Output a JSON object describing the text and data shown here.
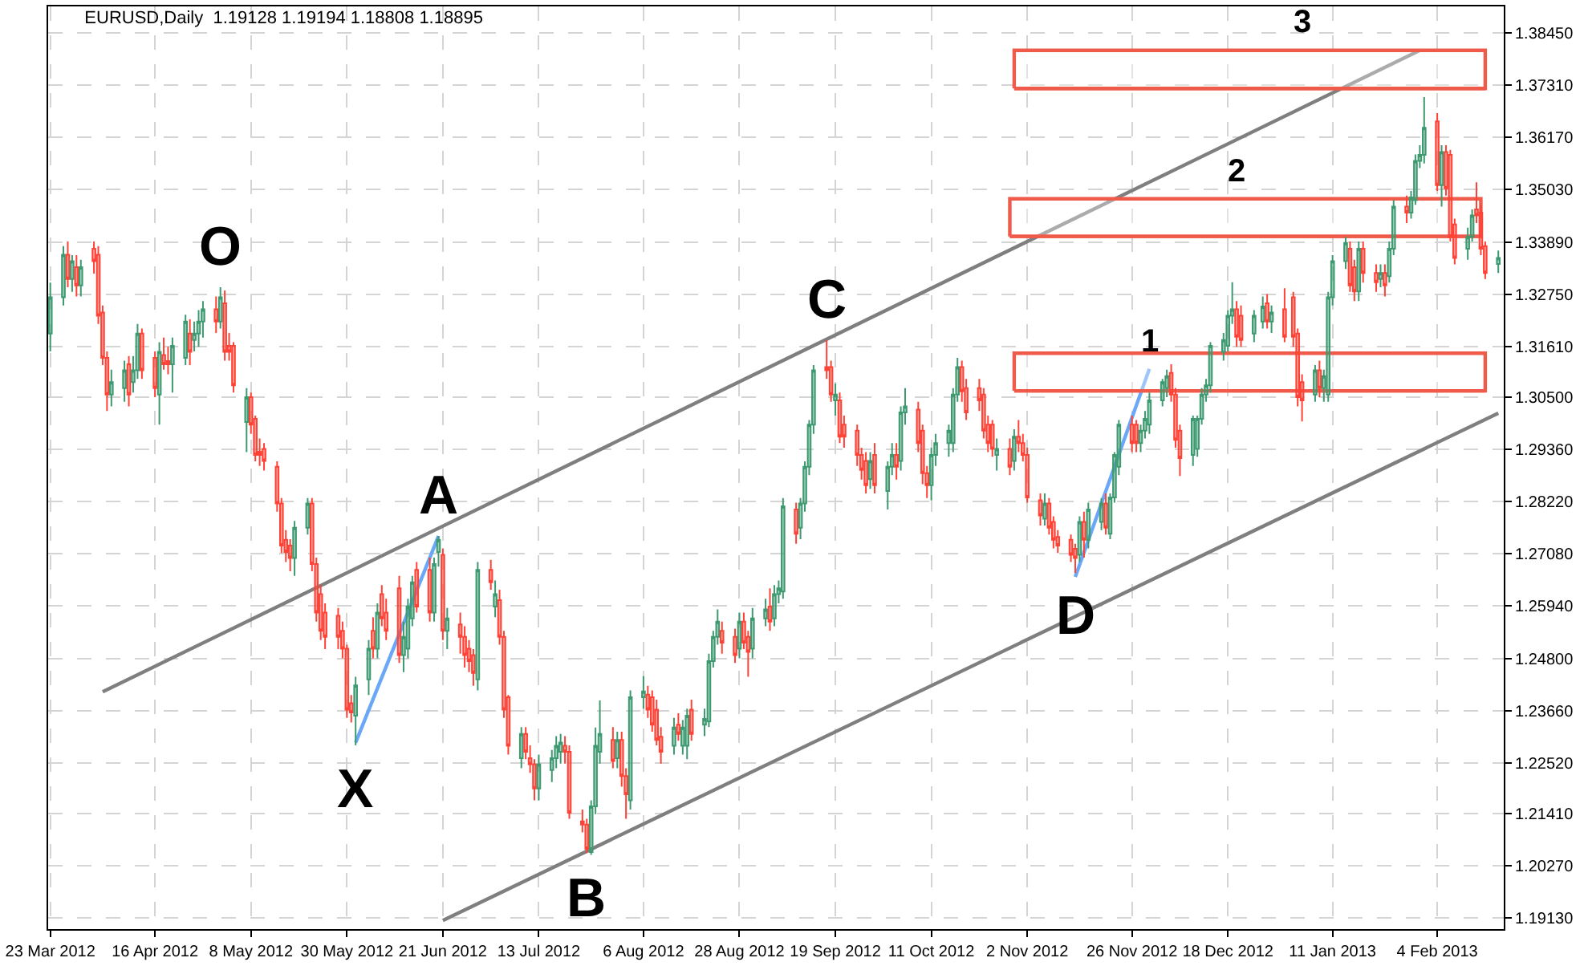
{
  "chart_data": {
    "type": "candlestick",
    "title": "EURUSD,Daily  1.19128 1.19194 1.18808 1.18895",
    "x": [
      "2012-03-23",
      "2012-03-26",
      "2012-03-27",
      "2012-03-28",
      "2012-03-29",
      "2012-03-30",
      "2012-04-02",
      "2012-04-03",
      "2012-04-04",
      "2012-04-05",
      "2012-04-06",
      "2012-04-09",
      "2012-04-10",
      "2012-04-11",
      "2012-04-12",
      "2012-04-13",
      "2012-04-16",
      "2012-04-17",
      "2012-04-18",
      "2012-04-19",
      "2012-04-20",
      "2012-04-23",
      "2012-04-24",
      "2012-04-25",
      "2012-04-26",
      "2012-04-27",
      "2012-04-30",
      "2012-05-01",
      "2012-05-02",
      "2012-05-03",
      "2012-05-04",
      "2012-05-07",
      "2012-05-08",
      "2012-05-09",
      "2012-05-10",
      "2012-05-11",
      "2012-05-14",
      "2012-05-15",
      "2012-05-16",
      "2012-05-17",
      "2012-05-18",
      "2012-05-21",
      "2012-05-22",
      "2012-05-23",
      "2012-05-24",
      "2012-05-25",
      "2012-05-28",
      "2012-05-29",
      "2012-05-30",
      "2012-05-31",
      "2012-06-01",
      "2012-06-04",
      "2012-06-05",
      "2012-06-06",
      "2012-06-07",
      "2012-06-08",
      "2012-06-11",
      "2012-06-12",
      "2012-06-13",
      "2012-06-14",
      "2012-06-15",
      "2012-06-18",
      "2012-06-19",
      "2012-06-20",
      "2012-06-21",
      "2012-06-22",
      "2012-06-25",
      "2012-06-26",
      "2012-06-27",
      "2012-06-28",
      "2012-06-29",
      "2012-07-02",
      "2012-07-03",
      "2012-07-04",
      "2012-07-05",
      "2012-07-06",
      "2012-07-09",
      "2012-07-10",
      "2012-07-11",
      "2012-07-12",
      "2012-07-13",
      "2012-07-16",
      "2012-07-17",
      "2012-07-18",
      "2012-07-19",
      "2012-07-20",
      "2012-07-23",
      "2012-07-24",
      "2012-07-25",
      "2012-07-26",
      "2012-07-27",
      "2012-07-30",
      "2012-07-31",
      "2012-08-01",
      "2012-08-02",
      "2012-08-03",
      "2012-08-06",
      "2012-08-07",
      "2012-08-08",
      "2012-08-09",
      "2012-08-10",
      "2012-08-13",
      "2012-08-14",
      "2012-08-15",
      "2012-08-16",
      "2012-08-17",
      "2012-08-20",
      "2012-08-21",
      "2012-08-22",
      "2012-08-23",
      "2012-08-24",
      "2012-08-27",
      "2012-08-28",
      "2012-08-29",
      "2012-08-30",
      "2012-08-31",
      "2012-09-03",
      "2012-09-04",
      "2012-09-05",
      "2012-09-06",
      "2012-09-07",
      "2012-09-10",
      "2012-09-11",
      "2012-09-12",
      "2012-09-13",
      "2012-09-14",
      "2012-09-17",
      "2012-09-18",
      "2012-09-19",
      "2012-09-20",
      "2012-09-21",
      "2012-09-24",
      "2012-09-25",
      "2012-09-26",
      "2012-09-27",
      "2012-09-28",
      "2012-10-01",
      "2012-10-02",
      "2012-10-03",
      "2012-10-04",
      "2012-10-05",
      "2012-10-08",
      "2012-10-09",
      "2012-10-10",
      "2012-10-11",
      "2012-10-12",
      "2012-10-15",
      "2012-10-16",
      "2012-10-17",
      "2012-10-18",
      "2012-10-19",
      "2012-10-22",
      "2012-10-23",
      "2012-10-24",
      "2012-10-25",
      "2012-10-26",
      "2012-10-29",
      "2012-10-30",
      "2012-10-31",
      "2012-11-01",
      "2012-11-02",
      "2012-11-05",
      "2012-11-06",
      "2012-11-07",
      "2012-11-08",
      "2012-11-09",
      "2012-11-12",
      "2012-11-13",
      "2012-11-14",
      "2012-11-15",
      "2012-11-16",
      "2012-11-19",
      "2012-11-20",
      "2012-11-21",
      "2012-11-22",
      "2012-11-23",
      "2012-11-26",
      "2012-11-27",
      "2012-11-28",
      "2012-11-29",
      "2012-11-30",
      "2012-12-03",
      "2012-12-04",
      "2012-12-05",
      "2012-12-06",
      "2012-12-07",
      "2012-12-10",
      "2012-12-11",
      "2012-12-12",
      "2012-12-13",
      "2012-12-14",
      "2012-12-17",
      "2012-12-18",
      "2012-12-19",
      "2012-12-20",
      "2012-12-21",
      "2012-12-24",
      "2012-12-26",
      "2012-12-27",
      "2012-12-28",
      "2012-12-31",
      "2013-01-02",
      "2013-01-03",
      "2013-01-04",
      "2013-01-07",
      "2013-01-08",
      "2013-01-09",
      "2013-01-10",
      "2013-01-11",
      "2013-01-14",
      "2013-01-15",
      "2013-01-16",
      "2013-01-17",
      "2013-01-18",
      "2013-01-21",
      "2013-01-22",
      "2013-01-23",
      "2013-01-24",
      "2013-01-25",
      "2013-01-28",
      "2013-01-29",
      "2013-01-30",
      "2013-01-31",
      "2013-02-01",
      "2013-02-04",
      "2013-02-05",
      "2013-02-06",
      "2013-02-07",
      "2013-02-08",
      "2013-02-11",
      "2013-02-12",
      "2013-02-13",
      "2013-02-14",
      "2013-02-15",
      "2013-02-18"
    ],
    "ohlc": [
      [
        1.3189,
        1.33,
        1.315,
        1.3268
      ],
      [
        1.3268,
        1.338,
        1.325,
        1.3361
      ],
      [
        1.3361,
        1.339,
        1.329,
        1.3308
      ],
      [
        1.3308,
        1.336,
        1.328,
        1.3347
      ],
      [
        1.3334,
        1.336,
        1.327,
        1.3294
      ],
      [
        1.3294,
        1.335,
        1.327,
        1.3334
      ],
      [
        1.3374,
        1.339,
        1.332,
        1.3347
      ],
      [
        1.3361,
        1.338,
        1.321,
        1.3228
      ],
      [
        1.3235,
        1.325,
        1.312,
        1.3136
      ],
      [
        1.3136,
        1.315,
        1.302,
        1.3056
      ],
      [
        1.3056,
        1.311,
        1.303,
        1.3083
      ],
      [
        1.307,
        1.313,
        1.304,
        1.3109
      ],
      [
        1.3122,
        1.314,
        1.303,
        1.3056
      ],
      [
        1.3083,
        1.314,
        1.306,
        1.3109
      ],
      [
        1.3109,
        1.321,
        1.309,
        1.3189
      ],
      [
        1.3189,
        1.32,
        1.309,
        1.3109
      ],
      [
        1.3136,
        1.315,
        1.305,
        1.307
      ],
      [
        1.3056,
        1.317,
        1.299,
        1.3149
      ],
      [
        1.3142,
        1.318,
        1.311,
        1.3122
      ],
      [
        1.3129,
        1.316,
        1.31,
        1.3122
      ],
      [
        1.3122,
        1.318,
        1.306,
        1.3162
      ],
      [
        1.3136,
        1.323,
        1.312,
        1.3215
      ],
      [
        1.3189,
        1.322,
        1.312,
        1.3149
      ],
      [
        1.3175,
        1.3215,
        1.315,
        1.3189
      ],
      [
        1.3189,
        1.324,
        1.316,
        1.3215
      ],
      [
        1.3215,
        1.326,
        1.318,
        1.3242
      ],
      [
        1.3242,
        1.327,
        1.319,
        1.3215
      ],
      [
        1.3215,
        1.329,
        1.32,
        1.3268
      ],
      [
        1.3255,
        1.3283,
        1.313,
        1.3149
      ],
      [
        1.3162,
        1.319,
        1.313,
        1.3149
      ],
      [
        1.3162,
        1.317,
        1.306,
        1.3076
      ],
      [
        1.2996,
        1.307,
        1.293,
        1.305
      ],
      [
        1.305,
        1.306,
        1.297,
        1.299
      ],
      [
        1.3003,
        1.301,
        1.291,
        1.2924
      ],
      [
        1.2931,
        1.296,
        1.29,
        1.2924
      ],
      [
        1.2937,
        1.295,
        1.289,
        1.2911
      ],
      [
        1.2898,
        1.291,
        1.28,
        1.2818
      ],
      [
        1.2818,
        1.283,
        1.271,
        1.2726
      ],
      [
        1.2739,
        1.276,
        1.269,
        1.2712
      ],
      [
        1.2726,
        1.274,
        1.267,
        1.2699
      ],
      [
        1.2699,
        1.278,
        1.266,
        1.2765
      ],
      [
        1.2765,
        1.283,
        1.275,
        1.2818
      ],
      [
        1.2818,
        1.283,
        1.267,
        1.2686
      ],
      [
        1.2686,
        1.27,
        1.256,
        1.258
      ],
      [
        1.262,
        1.264,
        1.252,
        1.254
      ],
      [
        1.258,
        1.26,
        1.25,
        1.2527
      ],
      [
        1.2573,
        1.259,
        1.25,
        1.2527
      ],
      [
        1.254,
        1.256,
        1.248,
        1.2501
      ],
      [
        1.2501,
        1.251,
        1.235,
        1.2368
      ],
      [
        1.2382,
        1.24,
        1.234,
        1.2362
      ],
      [
        1.2355,
        1.244,
        1.229,
        1.2421
      ],
      [
        1.2434,
        1.252,
        1.24,
        1.2501
      ],
      [
        1.254,
        1.257,
        1.248,
        1.2501
      ],
      [
        1.2501,
        1.26,
        1.248,
        1.258
      ],
      [
        1.262,
        1.264,
        1.255,
        1.2567
      ],
      [
        1.258,
        1.261,
        1.252,
        1.254
      ],
      [
        1.2633,
        1.266,
        1.247,
        1.2487
      ],
      [
        1.2487,
        1.256,
        1.245,
        1.2527
      ],
      [
        1.2501,
        1.261,
        1.248,
        1.2593
      ],
      [
        1.2567,
        1.266,
        1.255,
        1.2646
      ],
      [
        1.2673,
        1.269,
        1.258,
        1.2593
      ],
      [
        1.2673,
        1.27,
        1.256,
        1.258
      ],
      [
        1.258,
        1.27,
        1.256,
        1.2686
      ],
      [
        1.2712,
        1.2747,
        1.268,
        1.2739
      ],
      [
        1.2706,
        1.272,
        1.252,
        1.254
      ],
      [
        1.254,
        1.259,
        1.25,
        1.2567
      ],
      [
        1.2554,
        1.258,
        1.249,
        1.2527
      ],
      [
        1.2527,
        1.255,
        1.246,
        1.2487
      ],
      [
        1.2501,
        1.252,
        1.245,
        1.2474
      ],
      [
        1.2487,
        1.25,
        1.242,
        1.2448
      ],
      [
        1.2434,
        1.269,
        1.241,
        1.2673
      ],
      [
        1.2673,
        1.2695,
        1.263,
        1.2646
      ],
      [
        1.2593,
        1.265,
        1.257,
        1.262
      ],
      [
        1.2607,
        1.263,
        1.251,
        1.2527
      ],
      [
        1.2527,
        1.254,
        1.235,
        1.2368
      ],
      [
        1.2395,
        1.24,
        1.227,
        1.2289
      ],
      [
        1.2262,
        1.233,
        1.224,
        1.2315
      ],
      [
        1.2315,
        1.233,
        1.226,
        1.2276
      ],
      [
        1.2262,
        1.229,
        1.223,
        1.2249
      ],
      [
        1.2249,
        1.226,
        1.217,
        1.2196
      ],
      [
        1.2196,
        1.227,
        1.217,
        1.2249
      ],
      [
        1.2236,
        1.228,
        1.221,
        1.2262
      ],
      [
        1.2262,
        1.231,
        1.224,
        1.2289
      ],
      [
        1.2276,
        1.2315,
        1.225,
        1.2296
      ],
      [
        1.2289,
        1.231,
        1.225,
        1.2276
      ],
      [
        1.2276,
        1.229,
        1.213,
        1.2143
      ],
      [
        1.2124,
        1.215,
        1.21,
        1.2117
      ],
      [
        1.2117,
        1.213,
        1.2055,
        1.2064
      ],
      [
        1.2057,
        1.217,
        1.2051,
        1.2157
      ],
      [
        1.2157,
        1.2329,
        1.214,
        1.2289
      ],
      [
        1.2276,
        1.2388,
        1.225,
        1.2315
      ],
      [
        1.2302,
        1.233,
        1.224,
        1.2256
      ],
      [
        1.2262,
        1.232,
        1.224,
        1.2302
      ],
      [
        1.2302,
        1.232,
        1.22,
        1.2223
      ],
      [
        1.2223,
        1.224,
        1.213,
        1.2183
      ],
      [
        1.217,
        1.241,
        1.215,
        1.2395
      ],
      [
        1.2395,
        1.2441,
        1.237,
        1.2408
      ],
      [
        1.2401,
        1.242,
        1.235,
        1.2368
      ],
      [
        1.2395,
        1.241,
        1.232,
        1.2335
      ],
      [
        1.2368,
        1.239,
        1.229,
        1.2302
      ],
      [
        1.2309,
        1.233,
        1.225,
        1.2276
      ],
      [
        1.2289,
        1.235,
        1.227,
        1.2329
      ],
      [
        1.2335,
        1.236,
        1.23,
        1.2315
      ],
      [
        1.2289,
        1.2345,
        1.227,
        1.2329
      ],
      [
        1.2289,
        1.237,
        1.226,
        1.2355
      ],
      [
        1.2368,
        1.239,
        1.23,
        1.2315
      ],
      [
        1.2335,
        1.237,
        1.231,
        1.2348
      ],
      [
        1.2342,
        1.249,
        1.233,
        1.2474
      ],
      [
        1.2474,
        1.254,
        1.246,
        1.2527
      ],
      [
        1.2527,
        1.2587,
        1.251,
        1.256
      ],
      [
        1.254,
        1.256,
        1.249,
        1.2514
      ],
      [
        1.2527,
        1.2545,
        1.247,
        1.2487
      ],
      [
        1.2501,
        1.258,
        1.248,
        1.256
      ],
      [
        1.256,
        1.258,
        1.25,
        1.2514
      ],
      [
        1.2527,
        1.254,
        1.244,
        1.2494
      ],
      [
        1.2501,
        1.259,
        1.248,
        1.2567
      ],
      [
        1.2567,
        1.261,
        1.255,
        1.2587
      ],
      [
        1.2593,
        1.2633,
        1.254,
        1.256
      ],
      [
        1.2567,
        1.264,
        1.255,
        1.262
      ],
      [
        1.262,
        1.265,
        1.26,
        1.2633
      ],
      [
        1.2626,
        1.283,
        1.261,
        1.2812
      ],
      [
        1.2805,
        1.282,
        1.273,
        1.2752
      ],
      [
        1.2765,
        1.283,
        1.274,
        1.2818
      ],
      [
        1.2818,
        1.291,
        1.28,
        1.2898
      ],
      [
        1.2898,
        1.3,
        1.288,
        1.299
      ],
      [
        1.299,
        1.312,
        1.297,
        1.3109
      ],
      [
        1.3116,
        1.3175,
        1.309,
        1.3109
      ],
      [
        1.3116,
        1.313,
        1.304,
        1.3056
      ],
      [
        1.3043,
        1.308,
        1.301,
        1.3056
      ],
      [
        1.3043,
        1.306,
        1.295,
        1.2964
      ],
      [
        1.299,
        1.301,
        1.294,
        1.2964
      ],
      [
        1.2977,
        1.299,
        1.29,
        1.2924
      ],
      [
        1.2924,
        1.294,
        1.287,
        1.2891
      ],
      [
        1.2911,
        1.293,
        1.284,
        1.2858
      ],
      [
        1.2871,
        1.293,
        1.285,
        1.2911
      ],
      [
        1.2924,
        1.295,
        1.284,
        1.2858
      ],
      [
        1.2845,
        1.291,
        1.2805,
        1.2898
      ],
      [
        1.2898,
        1.295,
        1.288,
        1.2924
      ],
      [
        1.2924,
        1.295,
        1.287,
        1.2898
      ],
      [
        1.2911,
        1.303,
        1.289,
        1.3017
      ],
      [
        1.3017,
        1.307,
        1.299,
        1.303
      ],
      [
        1.3023,
        1.304,
        1.293,
        1.295
      ],
      [
        1.2977,
        1.299,
        1.286,
        1.2884
      ],
      [
        1.2884,
        1.29,
        1.283,
        1.2858
      ],
      [
        1.2858,
        1.294,
        1.2825,
        1.2924
      ],
      [
        1.2924,
        1.297,
        1.29,
        1.295
      ],
      [
        1.295,
        1.299,
        1.292,
        1.2977
      ],
      [
        1.295,
        1.307,
        1.293,
        1.3056
      ],
      [
        1.3056,
        1.3136,
        1.304,
        1.3116
      ],
      [
        1.3116,
        1.313,
        1.304,
        1.3063
      ],
      [
        1.307,
        1.309,
        1.3,
        1.3017
      ],
      [
        1.307,
        1.309,
        1.302,
        1.3043
      ],
      [
        1.3056,
        1.307,
        1.296,
        1.2977
      ],
      [
        1.299,
        1.301,
        1.293,
        1.295
      ],
      [
        1.299,
        1.3,
        1.292,
        1.2937
      ],
      [
        1.2924,
        1.296,
        1.289,
        1.2937
      ],
      [
        1.2937,
        1.296,
        1.288,
        1.2898
      ],
      [
        1.2911,
        1.298,
        1.289,
        1.2964
      ],
      [
        1.2964,
        1.3,
        1.293,
        1.295
      ],
      [
        1.295,
        1.297,
        1.291,
        1.2924
      ],
      [
        1.2924,
        1.294,
        1.282,
        1.2831
      ],
      [
        1.2825,
        1.284,
        1.277,
        1.2792
      ],
      [
        1.2785,
        1.284,
        1.277,
        1.2818
      ],
      [
        1.2818,
        1.283,
        1.275,
        1.2765
      ],
      [
        1.2778,
        1.279,
        1.272,
        1.2739
      ],
      [
        1.2745,
        1.276,
        1.271,
        1.2726
      ],
      [
        1.2739,
        1.275,
        1.269,
        1.2706
      ],
      [
        1.2719,
        1.273,
        1.2666,
        1.2699
      ],
      [
        1.2706,
        1.279,
        1.269,
        1.2778
      ],
      [
        1.2778,
        1.28,
        1.27,
        1.2739
      ],
      [
        1.2739,
        1.282,
        1.272,
        1.2805
      ],
      [
        1.2778,
        1.283,
        1.276,
        1.2818
      ],
      [
        1.2818,
        1.284,
        1.275,
        1.2765
      ],
      [
        1.2752,
        1.284,
        1.274,
        1.2831
      ],
      [
        1.2831,
        1.293,
        1.282,
        1.2924
      ],
      [
        1.2898,
        1.3,
        1.288,
        1.299
      ],
      [
        1.299,
        1.301,
        1.293,
        1.295
      ],
      [
        1.299,
        1.3,
        1.293,
        1.295
      ],
      [
        1.295,
        1.299,
        1.293,
        1.2977
      ],
      [
        1.2977,
        1.302,
        1.296,
        1.3003
      ],
      [
        1.299,
        1.306,
        1.297,
        1.3043
      ],
      [
        1.3043,
        1.309,
        1.303,
        1.3083
      ],
      [
        1.307,
        1.311,
        1.305,
        1.3096
      ],
      [
        1.3103,
        1.3122,
        1.304,
        1.3056
      ],
      [
        1.3056,
        1.307,
        1.294,
        1.2957
      ],
      [
        1.2977,
        1.299,
        1.2878,
        1.2917
      ],
      [
        1.2924,
        1.301,
        1.29,
        1.3003
      ],
      [
        1.2937,
        1.301,
        1.292,
        1.3003
      ],
      [
        1.3003,
        1.307,
        1.299,
        1.3056
      ],
      [
        1.3056,
        1.309,
        1.304,
        1.3076
      ],
      [
        1.3076,
        1.317,
        1.306,
        1.3162
      ],
      [
        1.3149,
        1.319,
        1.313,
        1.3175
      ],
      [
        1.3162,
        1.324,
        1.315,
        1.3228
      ],
      [
        1.3228,
        1.3301,
        1.321,
        1.3242
      ],
      [
        1.3242,
        1.326,
        1.316,
        1.3182
      ],
      [
        1.3228,
        1.325,
        1.316,
        1.3175
      ],
      [
        1.3189,
        1.324,
        1.317,
        1.3228
      ],
      [
        1.3215,
        1.327,
        1.32,
        1.3248
      ],
      [
        1.3255,
        1.3275,
        1.32,
        1.3215
      ],
      [
        1.3215,
        1.325,
        1.319,
        1.3235
      ],
      [
        1.3242,
        1.3288,
        1.317,
        1.3182
      ],
      [
        1.3268,
        1.328,
        1.316,
        1.3182
      ],
      [
        1.3189,
        1.32,
        1.303,
        1.305
      ],
      [
        1.3083,
        1.31,
        1.2997,
        1.3043
      ],
      [
        1.3056,
        1.312,
        1.304,
        1.3109
      ],
      [
        1.3109,
        1.313,
        1.305,
        1.307
      ],
      [
        1.307,
        1.311,
        1.304,
        1.3096
      ],
      [
        1.3056,
        1.328,
        1.304,
        1.3268
      ],
      [
        1.3268,
        1.336,
        1.325,
        1.3347
      ],
      [
        1.3347,
        1.34,
        1.333,
        1.3387
      ],
      [
        1.3374,
        1.339,
        1.328,
        1.3294
      ],
      [
        1.3334,
        1.335,
        1.326,
        1.3281
      ],
      [
        1.3281,
        1.339,
        1.326,
        1.3374
      ],
      [
        1.3374,
        1.339,
        1.33,
        1.3321
      ],
      [
        1.3321,
        1.334,
        1.328,
        1.3301
      ],
      [
        1.3308,
        1.334,
        1.329,
        1.3321
      ],
      [
        1.3321,
        1.334,
        1.327,
        1.3294
      ],
      [
        1.3314,
        1.339,
        1.33,
        1.3374
      ],
      [
        1.3374,
        1.348,
        1.336,
        1.3466
      ],
      [
        1.3466,
        1.349,
        1.343,
        1.3453
      ],
      [
        1.3453,
        1.35,
        1.344,
        1.3486
      ],
      [
        1.348,
        1.358,
        1.347,
        1.3566
      ],
      [
        1.3566,
        1.36,
        1.355,
        1.3579
      ],
      [
        1.3579,
        1.3705,
        1.356,
        1.3638
      ],
      [
        1.3652,
        1.367,
        1.35,
        1.3513
      ],
      [
        1.3513,
        1.36,
        1.3466,
        1.3585
      ],
      [
        1.3585,
        1.36,
        1.349,
        1.3506
      ],
      [
        1.3579,
        1.359,
        1.339,
        1.34
      ],
      [
        1.3427,
        1.344,
        1.334,
        1.3354
      ],
      [
        1.3374,
        1.342,
        1.335,
        1.34
      ],
      [
        1.34,
        1.346,
        1.339,
        1.3447
      ],
      [
        1.346,
        1.3519,
        1.343,
        1.3447
      ],
      [
        1.3453,
        1.347,
        1.336,
        1.3374
      ],
      [
        1.338,
        1.339,
        1.3308,
        1.3321
      ],
      [
        1.3341,
        1.337,
        1.3321,
        1.3354
      ]
    ],
    "series": [
      {
        "type": "line",
        "color": "#7f7f7f",
        "x": [
          "2012-04-04",
          "2013-01-31"
        ],
        "values": [
          1.2407,
          1.3807
        ]
      },
      {
        "type": "line",
        "color": "#7f7f7f",
        "x": [
          "2012-06-21",
          "2013-02-18"
        ],
        "values": [
          1.1908,
          1.3015
        ]
      },
      {
        "type": "line",
        "color": "#6aa8f7",
        "x": [
          "2012-06-01",
          "2012-06-20"
        ],
        "values": [
          1.2296,
          1.2747
        ]
      },
      {
        "type": "line",
        "color": "#6aa8f7",
        "x": [
          "2012-11-13",
          "2012-11-30"
        ],
        "values": [
          1.2658,
          1.3112
        ]
      },
      {
        "type": "line",
        "color": "#f05a4a",
        "x": [
          "2012-10-30",
          "2013-02-15"
        ],
        "values": [
          1.3064,
          1.3064
        ],
        "lower": [
          1.3064,
          1.3064
        ],
        "upper": [
          1.3146,
          1.3146
        ]
      },
      {
        "type": "line",
        "color": "#f05a4a",
        "x": [
          "2012-10-29",
          "2013-02-14"
        ],
        "values": [
          1.3401,
          1.3401
        ],
        "lower": [
          1.3401,
          1.3401
        ],
        "upper": [
          1.3483,
          1.3483
        ]
      },
      {
        "type": "line",
        "color": "#f05a4a",
        "x": [
          "2012-10-30",
          "2013-02-15"
        ],
        "values": [
          1.3724,
          1.3724
        ],
        "lower": [
          1.3724,
          1.3724
        ],
        "upper": [
          1.3807,
          1.3807
        ]
      }
    ],
    "annotations": [
      {
        "text": "O",
        "x": "2012-05-01",
        "y": 1.329
      },
      {
        "text": "A",
        "x": "2012-06-20",
        "y": 1.2747
      },
      {
        "text": "X",
        "x": "2012-06-01",
        "y": 1.229
      },
      {
        "text": "B",
        "x": "2012-07-24",
        "y": 1.2051
      },
      {
        "text": "C",
        "x": "2012-09-17",
        "y": 1.3175
      },
      {
        "text": "D",
        "x": "2012-11-13",
        "y": 1.2666
      },
      {
        "text": "1",
        "x": "2012-11-30",
        "y": 1.3112
      },
      {
        "text": "2",
        "x": "2012-12-20",
        "y": 1.3483
      },
      {
        "text": "3",
        "x": "2013-01-04",
        "y": 1.3807
      }
    ],
    "xlim": [
      "2012-03-22T12:00",
      "2013-02-19T06:00"
    ],
    "xticks": [
      {
        "value": "2012-03-23",
        "label": "23 Mar 2012"
      },
      {
        "value": "2012-04-16",
        "label": "16 Apr 2012"
      },
      {
        "value": "2012-05-08",
        "label": "8 May 2012"
      },
      {
        "value": "2012-05-30",
        "label": "30 May 2012"
      },
      {
        "value": "2012-06-21",
        "label": "21 Jun 2012"
      },
      {
        "value": "2012-07-13",
        "label": "13 Jul 2012"
      },
      {
        "value": "2012-08-06",
        "label": "6 Aug 2012"
      },
      {
        "value": "2012-08-28",
        "label": "28 Aug 2012"
      },
      {
        "value": "2012-09-19",
        "label": "19 Sep 2012"
      },
      {
        "value": "2012-10-11",
        "label": "11 Oct 2012"
      },
      {
        "value": "2012-11-02",
        "label": "2 Nov 2012"
      },
      {
        "value": "2012-11-26",
        "label": "26 Nov 2012"
      },
      {
        "value": "2012-12-18",
        "label": "18 Dec 2012"
      },
      {
        "value": "2013-01-11",
        "label": "11 Jan 2013"
      },
      {
        "value": "2013-02-04",
        "label": "4 Feb 2013"
      }
    ],
    "ylim": [
      1.1889,
      1.3903
    ],
    "yticks": [
      {
        "value": 1.1913,
        "label": "1.19130"
      },
      {
        "value": 1.2027,
        "label": "1.20270"
      },
      {
        "value": 1.2141,
        "label": "1.21410"
      },
      {
        "value": 1.2252,
        "label": "1.22520"
      },
      {
        "value": 1.2366,
        "label": "1.23660"
      },
      {
        "value": 1.248,
        "label": "1.24800"
      },
      {
        "value": 1.2594,
        "label": "1.25940"
      },
      {
        "value": 1.2708,
        "label": "1.27080"
      },
      {
        "value": 1.2822,
        "label": "1.28220"
      },
      {
        "value": 1.2936,
        "label": "1.29360"
      },
      {
        "value": 1.305,
        "label": "1.30500"
      },
      {
        "value": 1.3161,
        "label": "1.31610"
      },
      {
        "value": 1.3275,
        "label": "1.32750"
      },
      {
        "value": 1.3389,
        "label": "1.33890"
      },
      {
        "value": 1.3503,
        "label": "1.35030"
      },
      {
        "value": 1.3617,
        "label": "1.36170"
      },
      {
        "value": 1.3731,
        "label": "1.37310"
      },
      {
        "value": 1.3845,
        "label": "1.38450"
      }
    ],
    "grid": true
  }
}
